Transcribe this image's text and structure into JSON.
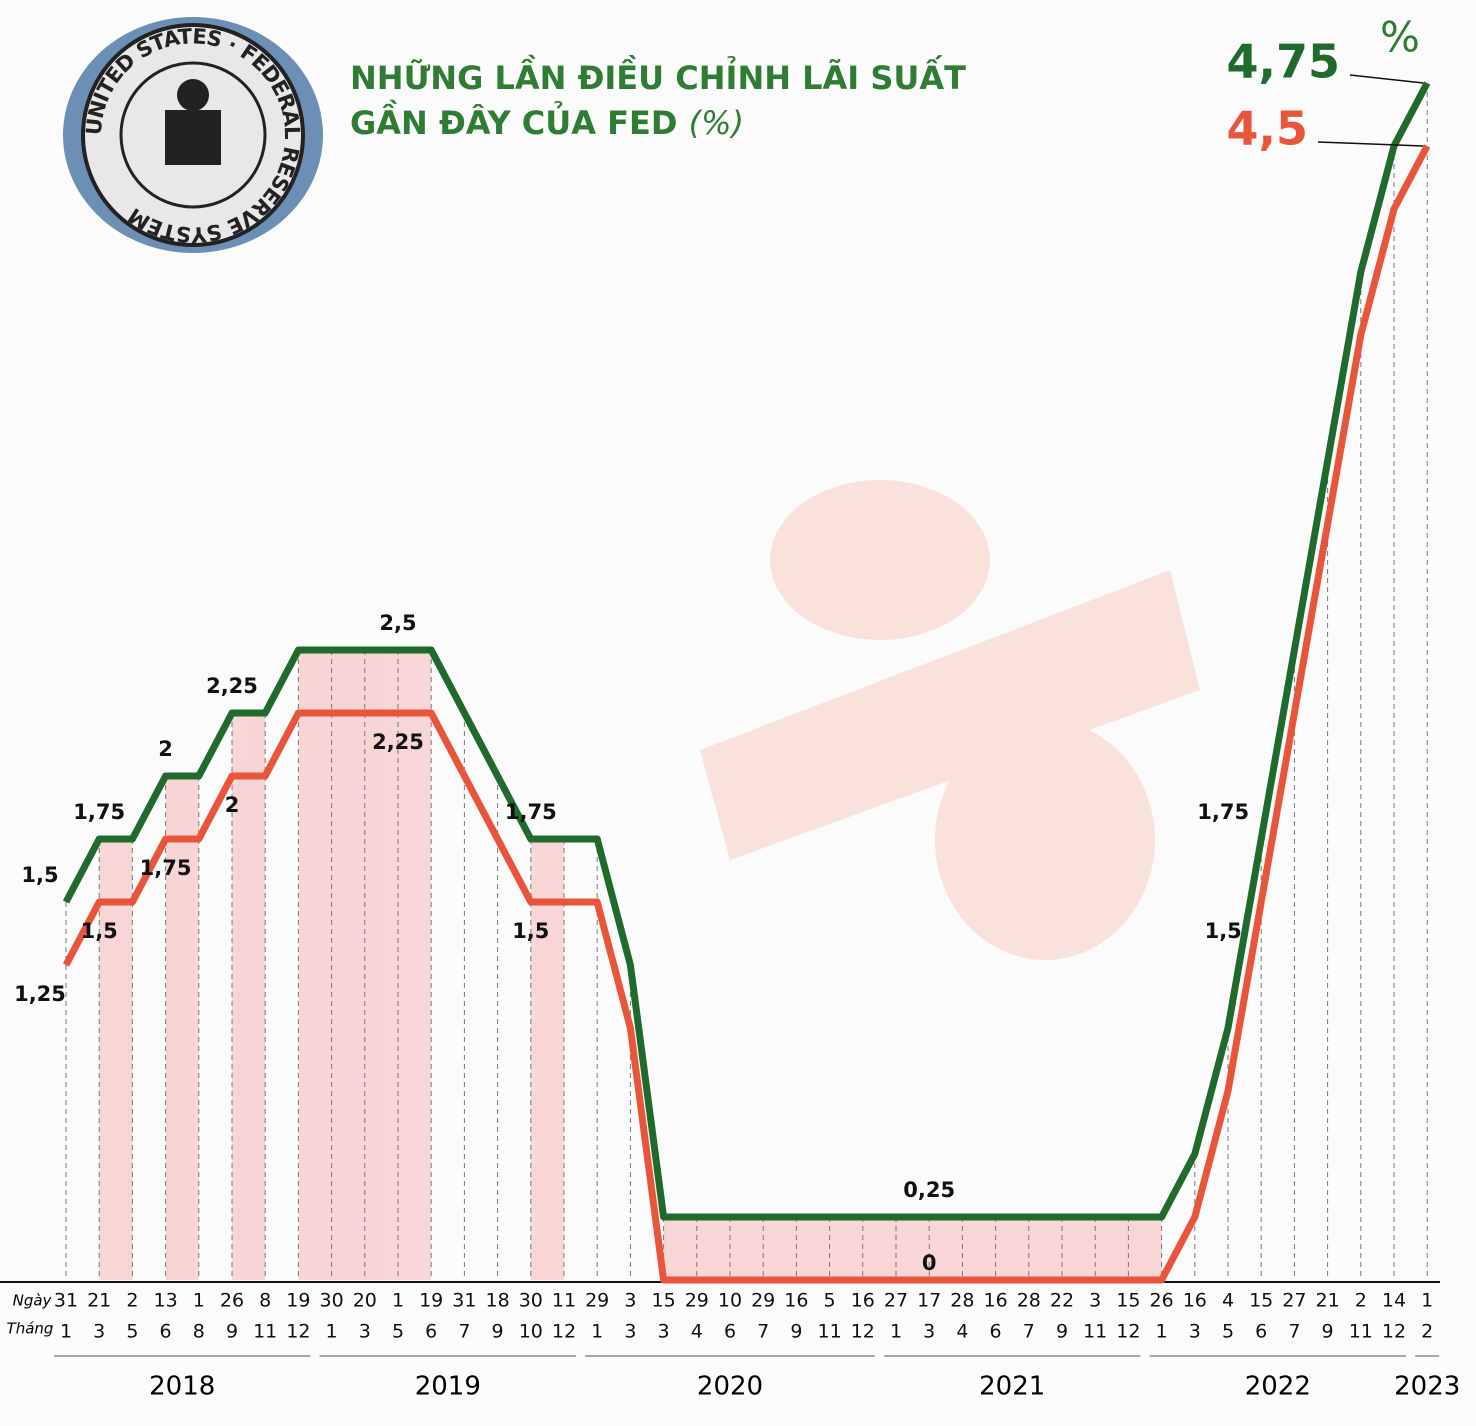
{
  "chart_data": {
    "type": "line",
    "title_line1": "NHỮNG LẦN ĐIỀU CHỈNH LÃI SUẤT",
    "title_line2": "GẦN ĐÂY CỦA FED",
    "title_unit": "(%)",
    "unit": "%",
    "logo_text": "UNITED STATES · FEDERAL RESERVE SYSTEM",
    "row_labels": [
      "Ngày",
      "Tháng"
    ],
    "days": [
      "31",
      "21",
      "2",
      "13",
      "1",
      "26",
      "8",
      "19",
      "30",
      "20",
      "1",
      "19",
      "31",
      "18",
      "30",
      "11",
      "29",
      "3",
      "15",
      "29",
      "10",
      "29",
      "16",
      "5",
      "16",
      "27",
      "17",
      "28",
      "16",
      "28",
      "22",
      "3",
      "15",
      "26",
      "16",
      "4",
      "15",
      "27",
      "21",
      "2",
      "14",
      "1"
    ],
    "months": [
      "1",
      "3",
      "5",
      "6",
      "8",
      "9",
      "11",
      "12",
      "1",
      "3",
      "5",
      "6",
      "7",
      "9",
      "10",
      "12",
      "1",
      "3",
      "3",
      "4",
      "6",
      "7",
      "9",
      "11",
      "12",
      "1",
      "3",
      "4",
      "6",
      "7",
      "9",
      "11",
      "12",
      "1",
      "3",
      "5",
      "6",
      "7",
      "9",
      "11",
      "12",
      "2"
    ],
    "years": [
      {
        "label": "2018",
        "count": 8
      },
      {
        "label": "2019",
        "count": 8
      },
      {
        "label": "2020",
        "count": 9
      },
      {
        "label": "2021",
        "count": 8
      },
      {
        "label": "2022",
        "count": 8
      },
      {
        "label": "2023",
        "count": 1
      }
    ],
    "ylim": [
      0,
      5
    ],
    "series": [
      {
        "color": "#1f6a2c",
        "values": [
          1.5,
          1.75,
          1.75,
          2,
          2,
          2.25,
          2.25,
          2.5,
          2.5,
          2.5,
          2.5,
          2.5,
          2.25,
          2,
          1.75,
          1.75,
          1.75,
          1.25,
          0.25,
          0.25,
          0.25,
          0.25,
          0.25,
          0.25,
          0.25,
          0.25,
          0.25,
          0.25,
          0.25,
          0.25,
          0.25,
          0.25,
          0.25,
          0.25,
          0.5,
          1,
          1.75,
          2.5,
          3.25,
          4,
          4.5,
          4.75
        ],
        "value_labels": [
          "1,5",
          "1,75",
          null,
          "2",
          null,
          "2,25",
          null,
          null,
          null,
          null,
          "2,5",
          null,
          null,
          null,
          "1,75",
          null,
          null,
          null,
          null,
          null,
          null,
          null,
          null,
          null,
          null,
          null,
          "0,25",
          null,
          null,
          null,
          null,
          null,
          null,
          null,
          null,
          null,
          "1,75",
          null,
          null,
          null,
          null,
          "4,75"
        ]
      },
      {
        "color": "#e9553b",
        "values": [
          1.25,
          1.5,
          1.5,
          1.75,
          1.75,
          2,
          2,
          2.25,
          2.25,
          2.25,
          2.25,
          2.25,
          2,
          1.75,
          1.5,
          1.5,
          1.5,
          1,
          0,
          0,
          0,
          0,
          0,
          0,
          0,
          0,
          0,
          0,
          0,
          0,
          0,
          0,
          0,
          0,
          0.25,
          0.75,
          1.5,
          2.25,
          3,
          3.75,
          4.25,
          4.5
        ],
        "value_labels": [
          "1,25",
          "1,5",
          null,
          "1,75",
          null,
          "2",
          null,
          null,
          null,
          null,
          "2,25",
          null,
          null,
          null,
          "1,5",
          null,
          null,
          null,
          null,
          null,
          null,
          null,
          null,
          null,
          null,
          null,
          "0",
          null,
          null,
          null,
          null,
          null,
          null,
          null,
          null,
          null,
          "1,5",
          null,
          null,
          null,
          null,
          "4,5"
        ]
      }
    ]
  }
}
